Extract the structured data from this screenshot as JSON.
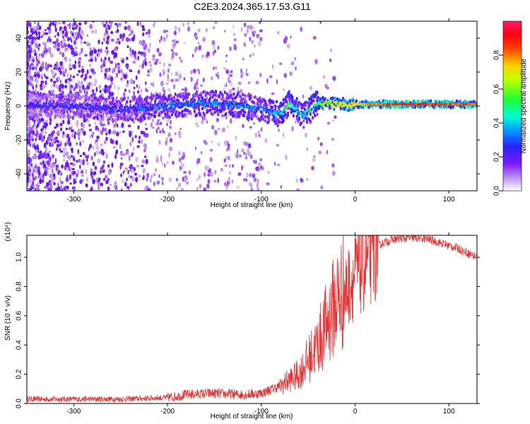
{
  "title": "C2E3.2024.365.17.53.G11",
  "colors": {
    "snr_line": "#e83030",
    "spectrogram_background": "#ffffff"
  },
  "chart_data": [
    {
      "type": "heatmap",
      "title": "C2E3.2024.365.17.53.G11",
      "xlabel": "Height of straight line (km)",
      "ylabel": "Frequency (Hz)",
      "xlim": [
        -350,
        130
      ],
      "ylim": [
        -50,
        50
      ],
      "x_ticks": [
        -300,
        -200,
        -100,
        0,
        100
      ],
      "y_ticks": [
        -40,
        -20,
        0,
        20,
        40
      ],
      "colorbar": {
        "label": "Normalized spectral amplitude",
        "range": [
          0,
          1
        ],
        "ticks": [
          0.0,
          0.2,
          0.4,
          0.6,
          0.8
        ],
        "colormap": "rainbow (white-violet-blue-cyan-green-yellow-red-pink)"
      },
      "ridge": {
        "description": "carrier line near 0 Hz",
        "points": [
          {
            "x": -350,
            "freq": 0,
            "amp": 0.25
          },
          {
            "x": -300,
            "freq": 0,
            "amp": 0.28
          },
          {
            "x": -250,
            "freq": -2,
            "amp": 0.3
          },
          {
            "x": -200,
            "freq": 0,
            "amp": 0.38
          },
          {
            "x": -150,
            "freq": 2,
            "amp": 0.4
          },
          {
            "x": -120,
            "freq": 0,
            "amp": 0.38
          },
          {
            "x": -100,
            "freq": -2,
            "amp": 0.35
          },
          {
            "x": -80,
            "freq": -5,
            "amp": 0.45
          },
          {
            "x": -70,
            "freq": 2,
            "amp": 0.5
          },
          {
            "x": -55,
            "freq": -6,
            "amp": 0.45
          },
          {
            "x": -40,
            "freq": 2,
            "amp": 0.55
          },
          {
            "x": -20,
            "freq": 1,
            "amp": 0.7
          },
          {
            "x": 0,
            "freq": 1,
            "amp": 0.75
          },
          {
            "x": 50,
            "freq": 1,
            "amp": 0.95
          },
          {
            "x": 100,
            "freq": 1,
            "amp": 0.9
          },
          {
            "x": 130,
            "freq": 1,
            "amp": 0.85
          }
        ]
      }
    },
    {
      "type": "line",
      "xlabel": "Height of straight line (km)",
      "ylabel": "SNR (10 * v/v)",
      "y_scale_label": "(x10⁴)",
      "xlim": [
        -350,
        130
      ],
      "ylim": [
        0,
        1.15
      ],
      "x_ticks": [
        -300,
        -200,
        -100,
        0,
        100
      ],
      "y_ticks": [
        0.0,
        0.2,
        0.4,
        0.6,
        0.8,
        1.0
      ],
      "grid": false,
      "series": [
        {
          "x": [
            -350,
            -300,
            -250,
            -200,
            -180,
            -150,
            -120,
            -100,
            -80,
            -60,
            -50,
            -40,
            -30,
            -20,
            -15,
            -10,
            -5,
            0,
            10,
            20,
            30,
            40,
            50,
            60,
            70,
            80,
            90,
            100,
            110,
            120,
            130
          ],
          "y": [
            0.03,
            0.03,
            0.03,
            0.04,
            0.06,
            0.07,
            0.06,
            0.07,
            0.12,
            0.2,
            0.3,
            0.4,
            0.55,
            0.7,
            0.75,
            0.78,
            0.82,
            0.88,
            0.95,
            1.05,
            1.1,
            1.12,
            1.13,
            1.13,
            1.13,
            1.12,
            1.1,
            1.08,
            1.06,
            1.03,
            1.0
          ]
        }
      ]
    }
  ],
  "tick_labels": {
    "top_x": [
      "-300",
      "-200",
      "-100",
      "0",
      "100"
    ],
    "top_y": [
      "-40",
      "-20",
      "0",
      "20",
      "40"
    ],
    "cbar": [
      "0.0",
      "0.2",
      "0.4",
      "0.6",
      "0.8"
    ],
    "bot_x": [
      "-300",
      "-200",
      "-100",
      "0",
      "100"
    ],
    "bot_y": [
      "0.0",
      "0.2",
      "0.4",
      "0.6",
      "0.8",
      "1.0"
    ]
  }
}
